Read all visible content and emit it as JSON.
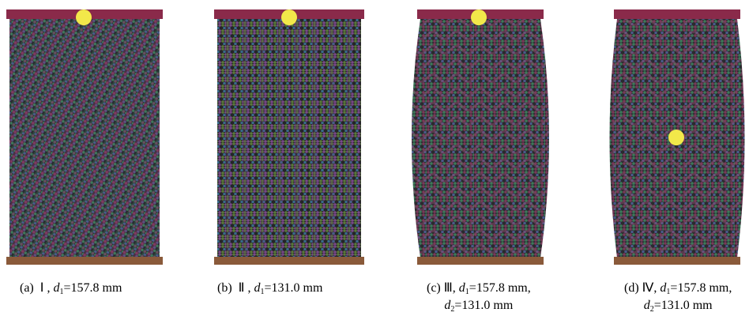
{
  "panels": [
    {
      "label": "(a)",
      "case": "Ⅰ ,",
      "lines": [
        [
          {
            "symbol": "d",
            "sub": "1",
            "value": "=157.8 mm"
          }
        ]
      ]
    },
    {
      "label": "(b)",
      "case": "Ⅱ ,",
      "lines": [
        [
          {
            "symbol": "d",
            "sub": "1",
            "value": "=131.0 mm"
          }
        ]
      ]
    },
    {
      "label": "(c)",
      "case": "Ⅲ,",
      "lines": [
        [
          {
            "symbol": "d",
            "sub": "1",
            "value": "=157.8 mm,"
          }
        ],
        [
          {
            "symbol": "d",
            "sub": "2",
            "value": "=131.0 mm"
          }
        ]
      ]
    },
    {
      "label": "(d)",
      "case": "Ⅳ,",
      "lines": [
        [
          {
            "symbol": "d",
            "sub": "1",
            "value": "=157.8 mm,"
          }
        ],
        [
          {
            "symbol": "d",
            "sub": "2",
            "value": "=131.0 mm"
          }
        ]
      ]
    }
  ]
}
